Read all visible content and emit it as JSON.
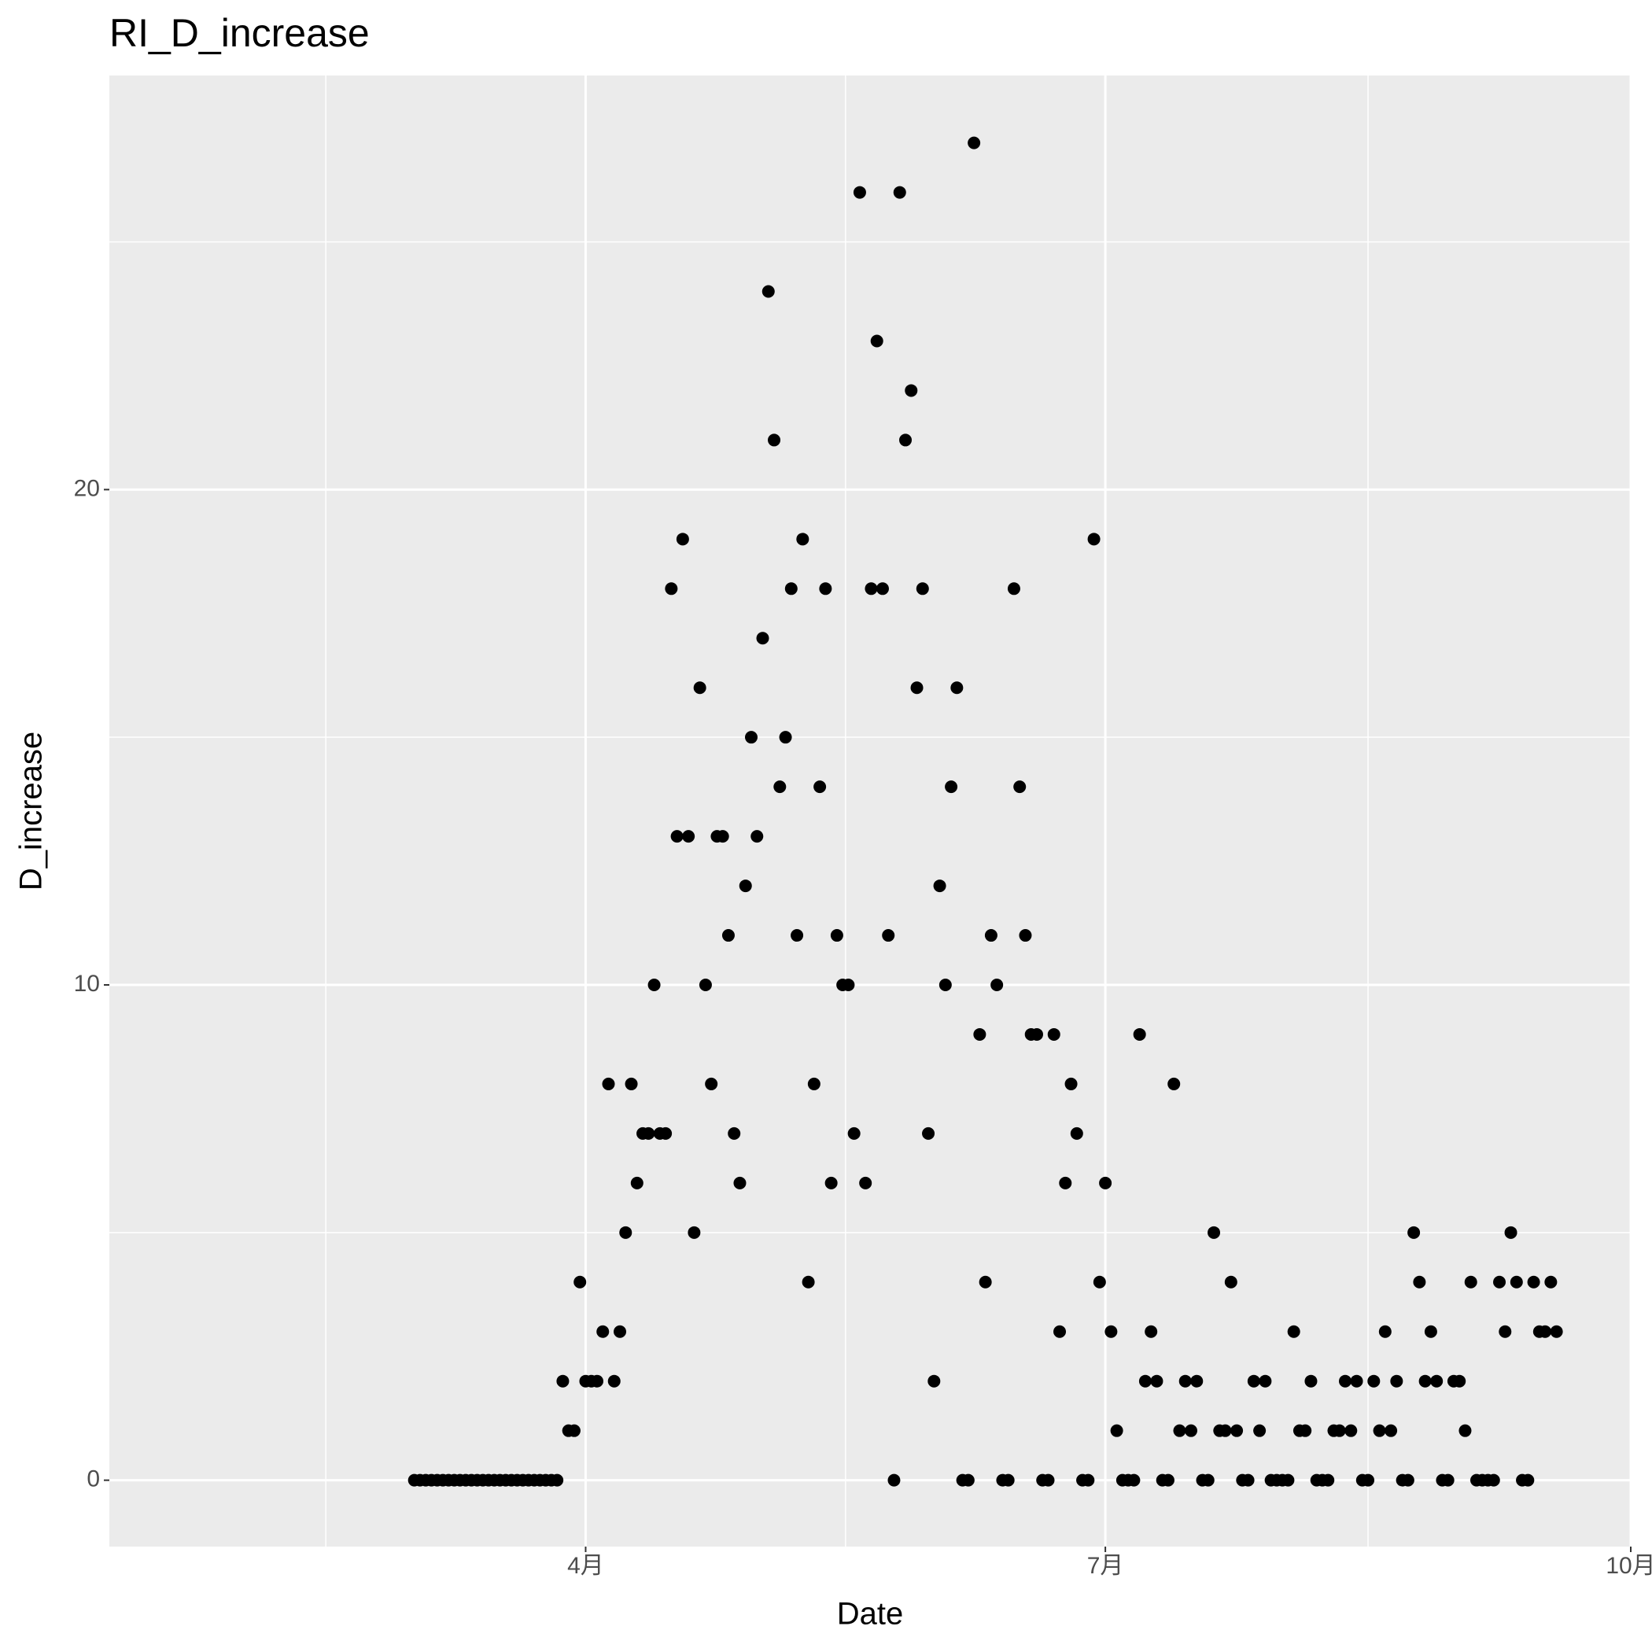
{
  "chart_data": {
    "type": "scatter",
    "title": "RI_D_increase",
    "x_label": "Date",
    "y_label": "D_increase",
    "x": [
      62,
      63,
      64,
      65,
      66,
      67,
      68,
      69,
      70,
      71,
      72,
      73,
      74,
      75,
      76,
      77,
      78,
      79,
      80,
      81,
      82,
      83,
      84,
      85,
      86,
      87,
      88,
      89,
      90,
      91,
      92,
      93,
      94,
      95,
      96,
      97,
      98,
      99,
      100,
      101,
      102,
      103,
      104,
      105,
      106,
      107,
      108,
      109,
      110,
      111,
      112,
      113,
      114,
      115,
      116,
      117,
      118,
      119,
      120,
      121,
      122,
      123,
      124,
      125,
      126,
      127,
      128,
      129,
      130,
      131,
      132,
      133,
      134,
      135,
      136,
      137,
      138,
      139,
      140,
      141,
      142,
      143,
      144,
      145,
      146,
      147,
      148,
      149,
      150,
      151,
      152,
      153,
      154,
      155,
      156,
      157,
      158,
      159,
      160,
      161,
      162,
      163,
      164,
      165,
      166,
      167,
      168,
      169,
      170,
      171,
      172,
      173,
      174,
      175,
      176,
      177,
      178,
      179,
      180,
      181,
      182,
      183,
      184,
      185,
      186,
      187,
      188,
      189,
      190,
      191,
      192,
      193,
      194,
      195,
      196,
      197,
      198,
      199,
      200,
      201,
      202,
      203,
      204,
      205,
      206,
      207,
      208,
      209,
      210,
      211,
      212,
      213,
      214,
      215,
      216,
      217,
      218,
      219,
      220,
      221,
      222,
      223,
      224,
      225,
      226,
      227,
      228,
      229,
      230,
      231,
      232,
      233,
      234,
      235,
      236,
      237,
      238,
      239,
      240,
      241,
      242,
      243,
      244,
      245,
      246,
      247,
      248,
      249,
      250,
      251,
      252,
      253,
      254,
      255,
      256,
      257,
      258,
      259,
      260,
      261,
      262
    ],
    "values": [
      0,
      0,
      0,
      0,
      0,
      0,
      0,
      0,
      0,
      0,
      0,
      0,
      0,
      0,
      0,
      0,
      0,
      0,
      0,
      0,
      0,
      0,
      0,
      0,
      0,
      0,
      2,
      1,
      1,
      4,
      2,
      2,
      2,
      3,
      8,
      2,
      3,
      5,
      8,
      6,
      7,
      7,
      10,
      7,
      7,
      18,
      13,
      19,
      13,
      5,
      16,
      10,
      8,
      13,
      13,
      11,
      7,
      6,
      12,
      15,
      13,
      17,
      24,
      21,
      14,
      15,
      18,
      11,
      19,
      4,
      8,
      14,
      18,
      6,
      11,
      10,
      10,
      7,
      26,
      6,
      18,
      23,
      18,
      11,
      0,
      26,
      21,
      22,
      16,
      18,
      7,
      2,
      12,
      10,
      14,
      16,
      0,
      0,
      27,
      9,
      4,
      11,
      10,
      0,
      0,
      18,
      14,
      11,
      9,
      9,
      0,
      0,
      9,
      3,
      6,
      8,
      7,
      0,
      0,
      19,
      4,
      6,
      3,
      1,
      0,
      0,
      0,
      9,
      2,
      3,
      2,
      0,
      0,
      8,
      1,
      2,
      1,
      2,
      0,
      0,
      5,
      1,
      1,
      4,
      1,
      0,
      0,
      2,
      1,
      2,
      0,
      0,
      0,
      0,
      3,
      1,
      1,
      2,
      0,
      0,
      0,
      1,
      1,
      2,
      1,
      2,
      0,
      0,
      2,
      1,
      3,
      1,
      2,
      0,
      0,
      5,
      4,
      2,
      3,
      2,
      0,
      0,
      2,
      2,
      1,
      4,
      0,
      0,
      0,
      0,
      4,
      3,
      5,
      4,
      0,
      0,
      4,
      3,
      3,
      4,
      3
    ],
    "color": "#000000",
    "xlim": [
      8.6,
      275
    ],
    "xticks": [
      {
        "value": 92,
        "label": "4月"
      },
      {
        "value": 183,
        "label": "7月"
      },
      {
        "value": 275,
        "label": "10月"
      }
    ],
    "ylim": [
      -1.34,
      28.36
    ],
    "yticks": [
      0,
      10,
      20
    ],
    "grid": true,
    "panel_color": "#ebebeb"
  }
}
